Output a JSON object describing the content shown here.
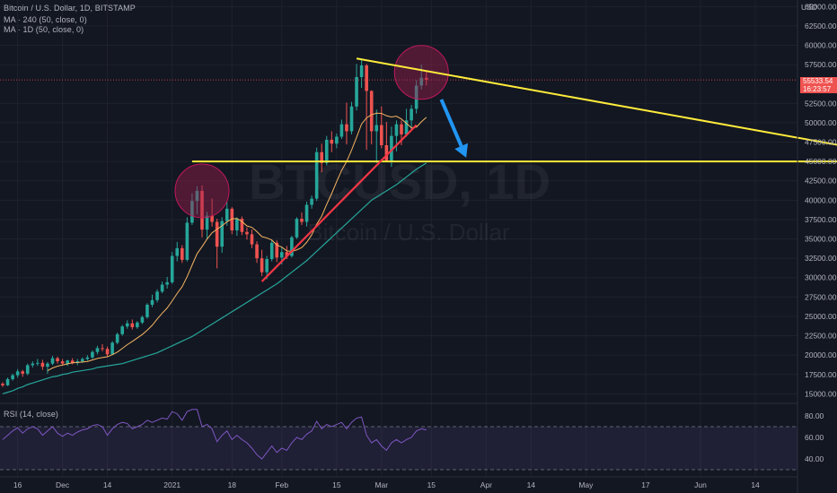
{
  "header": {
    "symbol_line": "Bitcoin / U.S. Dollar, 1D, BITSTAMP",
    "ma1_line": "MA · 240 (50, close, 0)",
    "ma2_line": "MA · 1D (50, close, 0)"
  },
  "watermark": {
    "ticker": "BTCUSD, 1D",
    "name": "Bitcoin / U.S. Dollar"
  },
  "price_tag": {
    "price": "55533.54",
    "countdown": "16:23:57"
  },
  "colors": {
    "background": "#131722",
    "up": "#26a69a",
    "down": "#ef5350",
    "ma_fast": "#f5b561",
    "ma_slow": "#26a69a",
    "trend_yellow": "#ffeb3b",
    "trend_red": "#f23645",
    "arrow": "#2196f3",
    "rsi": "#7e57c2"
  },
  "chart_data": {
    "type": "candlestick",
    "currency_label": "USD",
    "x_axis": {
      "tick_labels": [
        "16",
        "Dec",
        "14",
        "2021",
        "18",
        "Feb",
        "15",
        "Mar",
        "15",
        "Apr",
        "14",
        "May",
        "17",
        "Jun",
        "14"
      ]
    },
    "y_axis": {
      "range": [
        14000,
        65500
      ],
      "tick_labels": [
        "65000.00",
        "62500.00",
        "60000.00",
        "57500.00",
        "52500.00",
        "50000.00",
        "47500.00",
        "45000.00",
        "42500.00",
        "40000.00",
        "37500.00",
        "35000.00",
        "32500.00",
        "30000.00",
        "27500.00",
        "25000.00",
        "22500.00",
        "20000.00",
        "17500.00",
        "15000.00"
      ],
      "tick_values": [
        65000,
        62500,
        60000,
        57500,
        52500,
        50000,
        47500,
        45000,
        42500,
        40000,
        37500,
        35000,
        32500,
        30000,
        27500,
        25000,
        22500,
        20000,
        17500,
        15000
      ]
    },
    "ohlc": [
      [
        16300,
        16500,
        15900,
        16100
      ],
      [
        16100,
        17100,
        16000,
        16900
      ],
      [
        16900,
        17600,
        16700,
        17400
      ],
      [
        17400,
        18200,
        17100,
        17900
      ],
      [
        17900,
        18100,
        17200,
        17600
      ],
      [
        17600,
        18900,
        17400,
        18700
      ],
      [
        18700,
        19200,
        18400,
        18900
      ],
      [
        18900,
        19500,
        18600,
        19000
      ],
      [
        19000,
        19400,
        18100,
        18500
      ],
      [
        18500,
        19100,
        17600,
        18900
      ],
      [
        18900,
        19900,
        18700,
        19600
      ],
      [
        19600,
        19800,
        18900,
        19200
      ],
      [
        19200,
        19500,
        18700,
        18900
      ],
      [
        18900,
        19400,
        18600,
        19300
      ],
      [
        19300,
        19600,
        18800,
        19000
      ],
      [
        19000,
        19500,
        18700,
        19200
      ],
      [
        19200,
        19700,
        19000,
        19500
      ],
      [
        19500,
        20000,
        19300,
        19700
      ],
      [
        19700,
        20600,
        19500,
        20400
      ],
      [
        20400,
        21200,
        20100,
        20900
      ],
      [
        20900,
        21400,
        20500,
        20800
      ],
      [
        20800,
        21100,
        19800,
        20100
      ],
      [
        20100,
        21800,
        20000,
        21600
      ],
      [
        21600,
        22900,
        21400,
        22700
      ],
      [
        22700,
        23900,
        22500,
        23700
      ],
      [
        23700,
        24500,
        23400,
        24100
      ],
      [
        24100,
        24600,
        23300,
        23600
      ],
      [
        23600,
        24400,
        23400,
        24200
      ],
      [
        24200,
        25100,
        24000,
        24900
      ],
      [
        24900,
        26700,
        24700,
        26500
      ],
      [
        26500,
        27800,
        26200,
        27100
      ],
      [
        27100,
        28500,
        26800,
        28200
      ],
      [
        28200,
        29500,
        28000,
        29100
      ],
      [
        29100,
        30100,
        28600,
        29400
      ],
      [
        29400,
        33300,
        29200,
        32800
      ],
      [
        32800,
        34600,
        32100,
        33800
      ],
      [
        33800,
        34200,
        31900,
        32300
      ],
      [
        32300,
        37800,
        32100,
        37100
      ],
      [
        37100,
        40900,
        36800,
        39900
      ],
      [
        39900,
        41800,
        38200,
        41200
      ],
      [
        41200,
        41900,
        35200,
        36200
      ],
      [
        36200,
        38500,
        35000,
        38000
      ],
      [
        38000,
        40200,
        36600,
        37200
      ],
      [
        37200,
        37600,
        31200,
        34000
      ],
      [
        34000,
        37800,
        33200,
        37300
      ],
      [
        37300,
        39800,
        36700,
        38900
      ],
      [
        38900,
        39100,
        35600,
        36100
      ],
      [
        36100,
        37800,
        35400,
        37600
      ],
      [
        37600,
        37900,
        35500,
        35900
      ],
      [
        35900,
        36500,
        34900,
        35600
      ],
      [
        35600,
        36200,
        33800,
        34300
      ],
      [
        34300,
        34700,
        31900,
        32500
      ],
      [
        32500,
        33600,
        30200,
        30700
      ],
      [
        30700,
        32800,
        29800,
        32400
      ],
      [
        32400,
        34900,
        32100,
        34500
      ],
      [
        34500,
        34800,
        32000,
        32600
      ],
      [
        32600,
        33900,
        31700,
        33300
      ],
      [
        33300,
        34100,
        32400,
        32800
      ],
      [
        32800,
        35400,
        32600,
        35200
      ],
      [
        35200,
        37800,
        35000,
        37600
      ],
      [
        37600,
        38400,
        36800,
        37200
      ],
      [
        37200,
        39800,
        36600,
        39400
      ],
      [
        39400,
        40600,
        38900,
        40200
      ],
      [
        40200,
        46800,
        39900,
        46200
      ],
      [
        46200,
        47300,
        43600,
        44800
      ],
      [
        44800,
        48300,
        44500,
        47800
      ],
      [
        47800,
        48900,
        46200,
        47300
      ],
      [
        47300,
        48600,
        46700,
        48200
      ],
      [
        48200,
        50400,
        47900,
        49800
      ],
      [
        49800,
        52600,
        47200,
        48900
      ],
      [
        48900,
        52700,
        48500,
        52100
      ],
      [
        52100,
        57600,
        51600,
        55900
      ],
      [
        55900,
        58300,
        54500,
        57400
      ],
      [
        57400,
        57600,
        46500,
        54100
      ],
      [
        54100,
        54200,
        47200,
        48900
      ],
      [
        48900,
        51700,
        44800,
        49700
      ],
      [
        49700,
        52100,
        46700,
        47100
      ],
      [
        47100,
        50100,
        44900,
        45100
      ],
      [
        45100,
        49500,
        44300,
        48300
      ],
      [
        48300,
        50300,
        46300,
        49800
      ],
      [
        49800,
        50300,
        47100,
        48500
      ],
      [
        48500,
        51800,
        48200,
        50300
      ],
      [
        50300,
        52300,
        49200,
        51800
      ],
      [
        51800,
        55500,
        51200,
        54800
      ],
      [
        54800,
        57500,
        54300,
        55800
      ],
      [
        55800,
        56700,
        54800,
        55533
      ]
    ],
    "ma_fast_start_index": 9,
    "ma_slow_start_index": 0,
    "ma_slow_values": [
      15000,
      15200,
      15400,
      15700,
      15900,
      16200,
      16400,
      16600,
      16800,
      17000,
      17200,
      17300,
      17500,
      17600,
      17800,
      17900,
      18000,
      18100,
      18200,
      18400,
      18500,
      18600,
      18700,
      18800,
      18900,
      19100,
      19300,
      19500,
      19700,
      19900,
      20100,
      20300,
      20600,
      20900,
      21200,
      21500,
      21800,
      22100,
      22400,
      22800,
      23200,
      23600,
      24000,
      24400,
      24800,
      25200,
      25600,
      26000,
      26400,
      26800,
      27200,
      27600,
      28000,
      28400,
      28800,
      29200,
      29700,
      30200,
      30700,
      31200,
      31700,
      32200,
      32800,
      33400,
      34000,
      34600,
      35200,
      35800,
      36400,
      37000,
      37600,
      38200,
      38800,
      39400,
      40000,
      40400,
      40800,
      41200,
      41600,
      42000,
      42500,
      43000,
      43500,
      44000,
      44400,
      44800
    ],
    "rsi": {
      "label": "RSI (14, close)",
      "range": [
        25,
        90
      ],
      "upper_band": 70,
      "lower_band": 30,
      "tick_labels": [
        "80.00",
        "60.00",
        "40.00"
      ],
      "tick_values": [
        80,
        60,
        40
      ],
      "values": [
        58,
        62,
        66,
        69,
        64,
        68,
        70,
        68,
        62,
        66,
        70,
        64,
        61,
        64,
        62,
        65,
        67,
        68,
        71,
        72,
        70,
        62,
        68,
        72,
        74,
        73,
        68,
        70,
        72,
        76,
        74,
        76,
        78,
        77,
        84,
        82,
        76,
        84,
        86,
        86,
        70,
        72,
        68,
        56,
        62,
        66,
        58,
        62,
        58,
        55,
        50,
        44,
        40,
        46,
        52,
        46,
        50,
        48,
        55,
        60,
        58,
        63,
        66,
        75,
        68,
        72,
        70,
        72,
        74,
        68,
        74,
        78,
        79,
        62,
        55,
        58,
        52,
        48,
        55,
        58,
        55,
        58,
        60,
        66,
        68,
        67
      ]
    },
    "annotations": {
      "price_line": 55533.54,
      "resistance_line": {
        "from_index": 71,
        "from_value": 58300,
        "to_index": 186,
        "to_value": 45000
      },
      "support_level": {
        "from_index": 38,
        "to_index": 186,
        "value": 45000
      },
      "rising_support": {
        "from_index": 52,
        "from_value": 29500,
        "to_index": 83,
        "to_value": 49700
      },
      "circle_highs": [
        {
          "index": 40,
          "value": 41200
        },
        {
          "index": 84,
          "value": 56500
        }
      ],
      "arrow": {
        "from_index": 88,
        "from_value": 53000,
        "to_index": 93,
        "to_value": 45500
      }
    }
  }
}
